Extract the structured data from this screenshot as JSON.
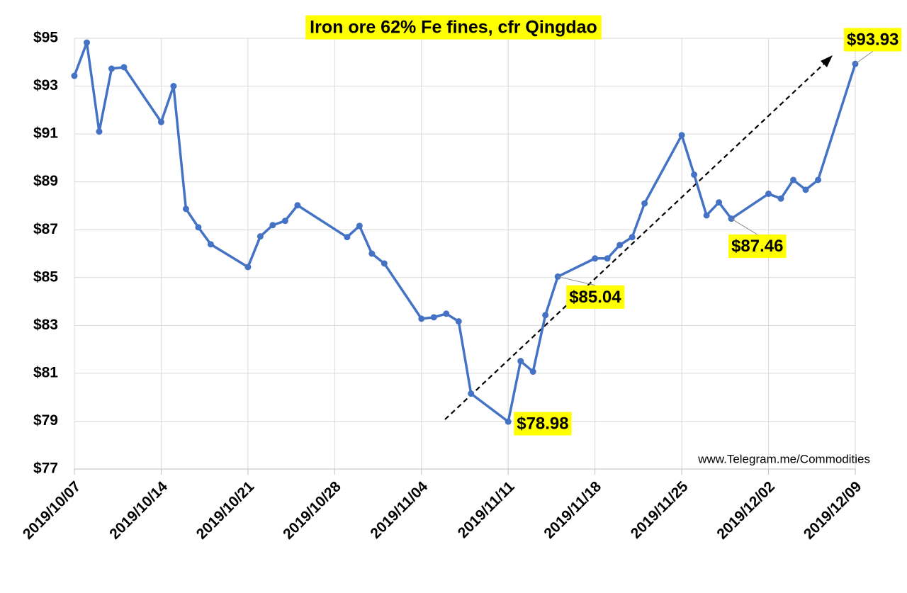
{
  "chart_data": {
    "type": "line",
    "title": "Iron ore 62% Fe fines, cfr Qingdao",
    "source": "www.Telegram.me/Commodities",
    "x": [
      "2019/10/07",
      "2019/10/08",
      "2019/10/09",
      "2019/10/10",
      "2019/10/11",
      "2019/10/14",
      "2019/10/15",
      "2019/10/16",
      "2019/10/17",
      "2019/10/18",
      "2019/10/21",
      "2019/10/22",
      "2019/10/23",
      "2019/10/24",
      "2019/10/25",
      "2019/10/29",
      "2019/10/30",
      "2019/10/31",
      "2019/11/01",
      "2019/11/04",
      "2019/11/05",
      "2019/11/06",
      "2019/11/07",
      "2019/11/08",
      "2019/11/11",
      "2019/11/12",
      "2019/11/13",
      "2019/11/14",
      "2019/11/15",
      "2019/11/18",
      "2019/11/19",
      "2019/11/20",
      "2019/11/21",
      "2019/11/22",
      "2019/11/25",
      "2019/11/26",
      "2019/11/27",
      "2019/11/28",
      "2019/11/29",
      "2019/12/02",
      "2019/12/03",
      "2019/12/04",
      "2019/12/05",
      "2019/12/06",
      "2019/12/09"
    ],
    "series": [
      {
        "name": "Iron ore 62% Fe fines",
        "color": "#4472c4",
        "values": [
          93.43,
          94.82,
          91.1,
          93.73,
          93.79,
          91.5,
          93.0,
          87.87,
          87.1,
          86.39,
          85.44,
          86.72,
          87.19,
          87.37,
          88.02,
          86.69,
          87.16,
          86.0,
          85.59,
          83.28,
          83.34,
          83.49,
          83.17,
          80.15,
          78.98,
          81.51,
          81.07,
          83.43,
          85.04,
          85.8,
          85.8,
          86.36,
          86.69,
          88.1,
          90.95,
          89.3,
          87.6,
          88.14,
          87.46,
          88.5,
          88.3,
          89.08,
          88.67,
          89.08,
          93.93
        ]
      }
    ],
    "annotations": [
      {
        "label": "$78.98",
        "x": "2019/11/11",
        "y": 78.98
      },
      {
        "label": "$85.04",
        "x": "2019/11/15",
        "y": 85.04
      },
      {
        "label": "$87.46",
        "x": "2019/11/29",
        "y": 87.46
      },
      {
        "label": "$93.93",
        "x": "2019/12/09",
        "y": 93.93
      }
    ],
    "xlim": [
      "2019/10/07",
      "2019/12/09"
    ],
    "xticks": [
      "2019/10/07",
      "2019/10/14",
      "2019/10/21",
      "2019/10/28",
      "2019/11/04",
      "2019/11/11",
      "2019/11/18",
      "2019/11/25",
      "2019/12/02",
      "2019/12/09"
    ],
    "ylim": [
      77,
      95
    ],
    "yticks": [
      {
        "value": 77,
        "label": "$77"
      },
      {
        "value": 79,
        "label": "$79"
      },
      {
        "value": 81,
        "label": "$81"
      },
      {
        "value": 83,
        "label": "$83"
      },
      {
        "value": 85,
        "label": "$85"
      },
      {
        "value": 87,
        "label": "$87"
      },
      {
        "value": 89,
        "label": "$89"
      },
      {
        "value": 91,
        "label": "$91"
      },
      {
        "value": 93,
        "label": "$93"
      },
      {
        "value": 95,
        "label": "$95"
      }
    ],
    "grid": true
  }
}
